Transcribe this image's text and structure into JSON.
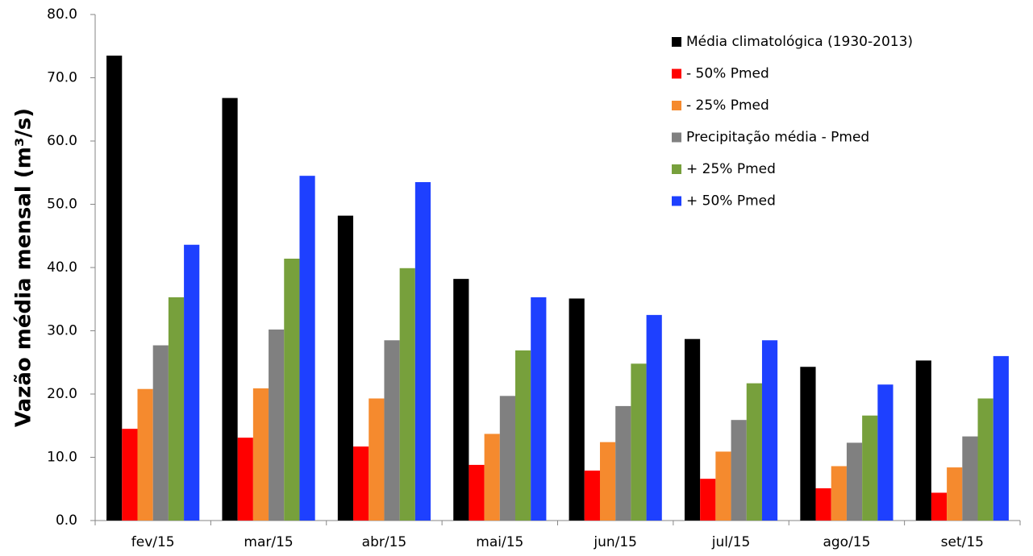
{
  "chart_data": {
    "type": "bar",
    "y_label": "Vazão média mensal (m³/s)",
    "categories": [
      "fev/15",
      "mar/15",
      "abr/15",
      "mai/15",
      "jun/15",
      "jul/15",
      "ago/15",
      "set/15"
    ],
    "series": [
      {
        "name": "Média climatológica (1930-2013)",
        "color": "#000000",
        "values": [
          73.5,
          66.8,
          48.2,
          38.2,
          35.1,
          28.7,
          24.3,
          25.3
        ]
      },
      {
        "name": "- 50% Pmed",
        "color": "#ff0000",
        "values": [
          14.5,
          13.1,
          11.7,
          8.8,
          7.9,
          6.6,
          5.1,
          4.4
        ]
      },
      {
        "name": "- 25% Pmed",
        "color": "#f58a2e",
        "values": [
          20.8,
          20.9,
          19.3,
          13.7,
          12.4,
          10.9,
          8.6,
          8.4
        ]
      },
      {
        "name": "Precipitação média - Pmed",
        "color": "#808080",
        "values": [
          27.7,
          30.2,
          28.5,
          19.7,
          18.1,
          15.9,
          12.3,
          13.3
        ]
      },
      {
        "name": "+ 25% Pmed",
        "color": "#77a03c",
        "values": [
          35.3,
          41.4,
          39.9,
          26.9,
          24.8,
          21.7,
          16.6,
          19.3
        ]
      },
      {
        "name": "+ 50% Pmed",
        "color": "#1e40ff",
        "values": [
          43.6,
          54.5,
          53.5,
          35.3,
          32.5,
          28.5,
          21.5,
          26.0
        ]
      }
    ],
    "ylim": [
      0,
      80
    ],
    "yticks": [
      {
        "value": 0,
        "label": "0.0"
      },
      {
        "value": 10,
        "label": "10.0"
      },
      {
        "value": 20,
        "label": "20.0"
      },
      {
        "value": 30,
        "label": "30.0"
      },
      {
        "value": 40,
        "label": "40.0"
      },
      {
        "value": 50,
        "label": "50.0"
      },
      {
        "value": 60,
        "label": "60.0"
      },
      {
        "value": 70,
        "label": "70.0"
      },
      {
        "value": 80,
        "label": "80.0"
      }
    ],
    "grid": false,
    "legend": "top-right"
  }
}
